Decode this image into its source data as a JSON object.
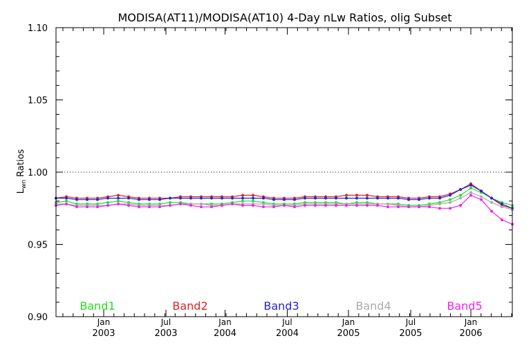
{
  "chart_data": {
    "type": "line",
    "title": "MODISA(AT11)/MODISA(AT10) 4-Day nLw Ratios, olig Subset",
    "xlabel": "",
    "ylabel": "Lwn Ratios",
    "ylabel_main": "L",
    "ylabel_sub": "wn",
    "ylabel_rest": " Ratios",
    "xlim": [
      0,
      44
    ],
    "ylim": [
      0.9,
      1.1
    ],
    "yticks": [
      0.9,
      0.95,
      1.0,
      1.05,
      1.1
    ],
    "ytick_labels": [
      "0.90",
      "0.95",
      "1.00",
      "1.05",
      "1.10"
    ],
    "xticks": [
      {
        "x": 4.6,
        "line1": "Jan",
        "line2": "2003"
      },
      {
        "x": 10.6,
        "line1": "Jul",
        "line2": "2003"
      },
      {
        "x": 16.3,
        "line1": "Jan",
        "line2": "2004"
      },
      {
        "x": 22.3,
        "line1": "Jul",
        "line2": "2004"
      },
      {
        "x": 28.2,
        "line1": "Jan",
        "line2": "2005"
      },
      {
        "x": 34.2,
        "line1": "Jul",
        "line2": "2005"
      },
      {
        "x": 40.0,
        "line1": "Jan",
        "line2": "2006"
      }
    ],
    "reference_line": {
      "y": 1.0,
      "style": "dotted"
    },
    "grid": false,
    "legend_position": "bottom",
    "x": [
      0,
      1,
      2,
      3,
      4,
      5,
      6,
      7,
      8,
      9,
      10,
      11,
      12,
      13,
      14,
      15,
      16,
      17,
      18,
      19,
      20,
      21,
      22,
      23,
      24,
      25,
      26,
      27,
      28,
      29,
      30,
      31,
      32,
      33,
      34,
      35,
      36,
      37,
      38,
      39,
      40,
      41,
      42,
      43,
      44
    ],
    "series": [
      {
        "name": "Band1",
        "color": "#22dd22",
        "values": [
          0.979,
          0.98,
          0.978,
          0.978,
          0.978,
          0.979,
          0.98,
          0.979,
          0.978,
          0.978,
          0.978,
          0.979,
          0.979,
          0.978,
          0.978,
          0.978,
          0.978,
          0.979,
          0.98,
          0.98,
          0.979,
          0.978,
          0.978,
          0.978,
          0.979,
          0.979,
          0.979,
          0.979,
          0.978,
          0.979,
          0.979,
          0.978,
          0.978,
          0.978,
          0.977,
          0.977,
          0.978,
          0.979,
          0.981,
          0.984,
          0.989,
          0.986,
          0.982,
          0.979,
          0.977
        ]
      },
      {
        "name": "Band2",
        "color": "#dd2222",
        "values": [
          0.982,
          0.983,
          0.982,
          0.982,
          0.982,
          0.983,
          0.984,
          0.983,
          0.982,
          0.982,
          0.982,
          0.982,
          0.983,
          0.983,
          0.983,
          0.983,
          0.983,
          0.983,
          0.984,
          0.984,
          0.983,
          0.982,
          0.982,
          0.982,
          0.983,
          0.983,
          0.983,
          0.983,
          0.984,
          0.984,
          0.984,
          0.983,
          0.983,
          0.983,
          0.982,
          0.982,
          0.983,
          0.983,
          0.985,
          0.988,
          0.992,
          0.987,
          0.982,
          0.977,
          0.975
        ]
      },
      {
        "name": "Band3",
        "color": "#2222dd",
        "values": [
          0.982,
          0.982,
          0.981,
          0.981,
          0.981,
          0.982,
          0.982,
          0.982,
          0.981,
          0.981,
          0.981,
          0.982,
          0.982,
          0.982,
          0.982,
          0.982,
          0.982,
          0.982,
          0.982,
          0.982,
          0.982,
          0.981,
          0.981,
          0.981,
          0.982,
          0.982,
          0.982,
          0.982,
          0.982,
          0.982,
          0.982,
          0.982,
          0.982,
          0.982,
          0.981,
          0.981,
          0.982,
          0.982,
          0.984,
          0.988,
          0.991,
          0.987,
          0.982,
          0.978,
          0.975
        ]
      },
      {
        "name": "Band4",
        "color": "#aaaaaa",
        "values": [
          0.978,
          0.978,
          0.977,
          0.977,
          0.977,
          0.977,
          0.978,
          0.978,
          0.977,
          0.977,
          0.977,
          0.977,
          0.978,
          0.978,
          0.978,
          0.977,
          0.977,
          0.978,
          0.978,
          0.978,
          0.978,
          0.977,
          0.977,
          0.977,
          0.978,
          0.978,
          0.978,
          0.978,
          0.978,
          0.978,
          0.978,
          0.978,
          0.978,
          0.977,
          0.976,
          0.976,
          0.977,
          0.978,
          0.979,
          0.982,
          0.986,
          0.983,
          0.979,
          0.976,
          0.974
        ]
      },
      {
        "name": "Band5",
        "color": "#ee22ee",
        "values": [
          0.977,
          0.978,
          0.976,
          0.976,
          0.976,
          0.977,
          0.978,
          0.977,
          0.976,
          0.976,
          0.976,
          0.977,
          0.978,
          0.977,
          0.976,
          0.976,
          0.977,
          0.978,
          0.977,
          0.977,
          0.976,
          0.976,
          0.977,
          0.976,
          0.977,
          0.977,
          0.977,
          0.977,
          0.977,
          0.977,
          0.977,
          0.977,
          0.976,
          0.976,
          0.976,
          0.976,
          0.976,
          0.975,
          0.975,
          0.977,
          0.984,
          0.981,
          0.973,
          0.967,
          0.964
        ]
      }
    ]
  }
}
